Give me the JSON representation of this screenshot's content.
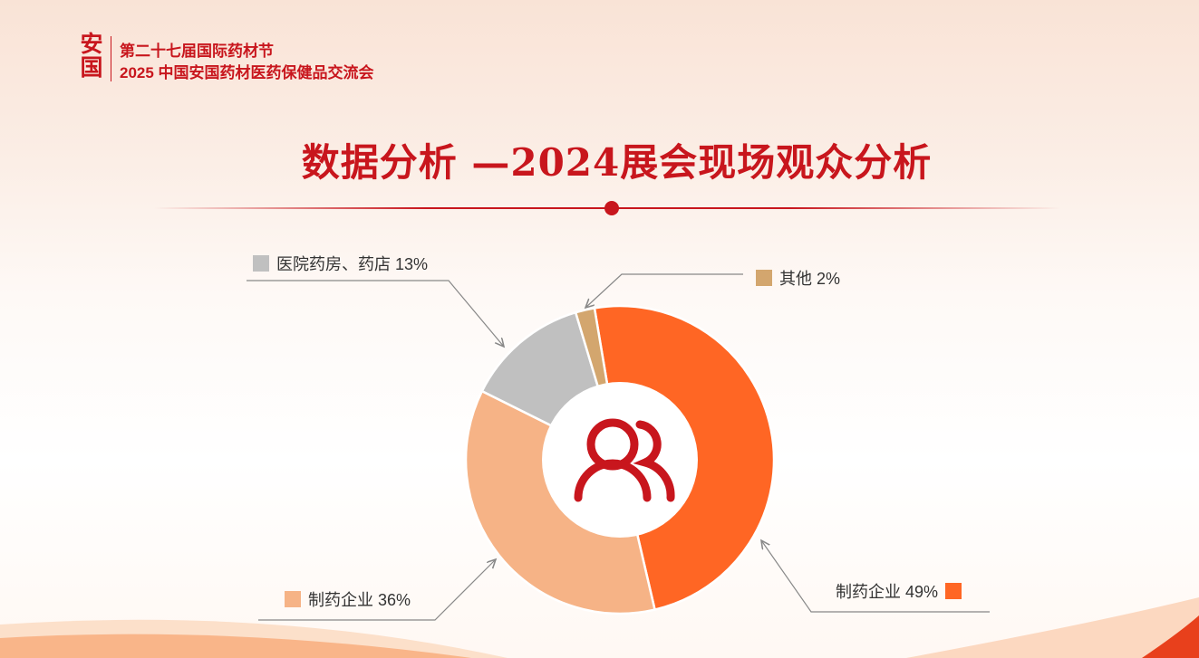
{
  "header": {
    "logo_text": "安国",
    "line1": "第二十七届国际药材节",
    "line2": "2025 中国安国药材医药保健品交流会"
  },
  "title": "数据分析 —2024展会现场观众分析",
  "chart_data": {
    "type": "pie",
    "donut": true,
    "title": "数据分析 —2024展会现场观众分析",
    "center_icon": "users-icon",
    "slices": [
      {
        "label": "制药企业",
        "value": 49,
        "text": "制药企业 49%",
        "color": "#ff6624"
      },
      {
        "label": "制药企业",
        "value": 36,
        "text": "制药企业 36%",
        "color": "#f6b386"
      },
      {
        "label": "医院药房、药店",
        "value": 13,
        "text": "医院药房、药店 13%",
        "color": "#c0c0c0"
      },
      {
        "label": "其他",
        "value": 2,
        "text": "其他 2%",
        "color": "#d3a66e"
      }
    ]
  },
  "colors": {
    "brand": "#c8161d"
  }
}
